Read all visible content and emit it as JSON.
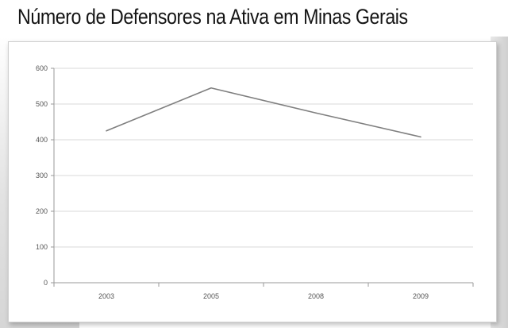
{
  "title": "Número de Defensores na Ativa em Minas Gerais",
  "chart_data": {
    "type": "line",
    "title": "Número de Defensores na Ativa em Minas Gerais",
    "categories": [
      "2003",
      "2005",
      "2008",
      "2009"
    ],
    "series": [
      {
        "values": [
          425,
          545,
          475,
          408
        ]
      }
    ],
    "y_ticks": [
      0,
      100,
      200,
      300,
      400,
      500,
      600
    ],
    "ylim": [
      0,
      600
    ],
    "grid": true,
    "legend": "none",
    "line_color": "#7f7f7f",
    "grid_color": "#d9d9d9"
  }
}
